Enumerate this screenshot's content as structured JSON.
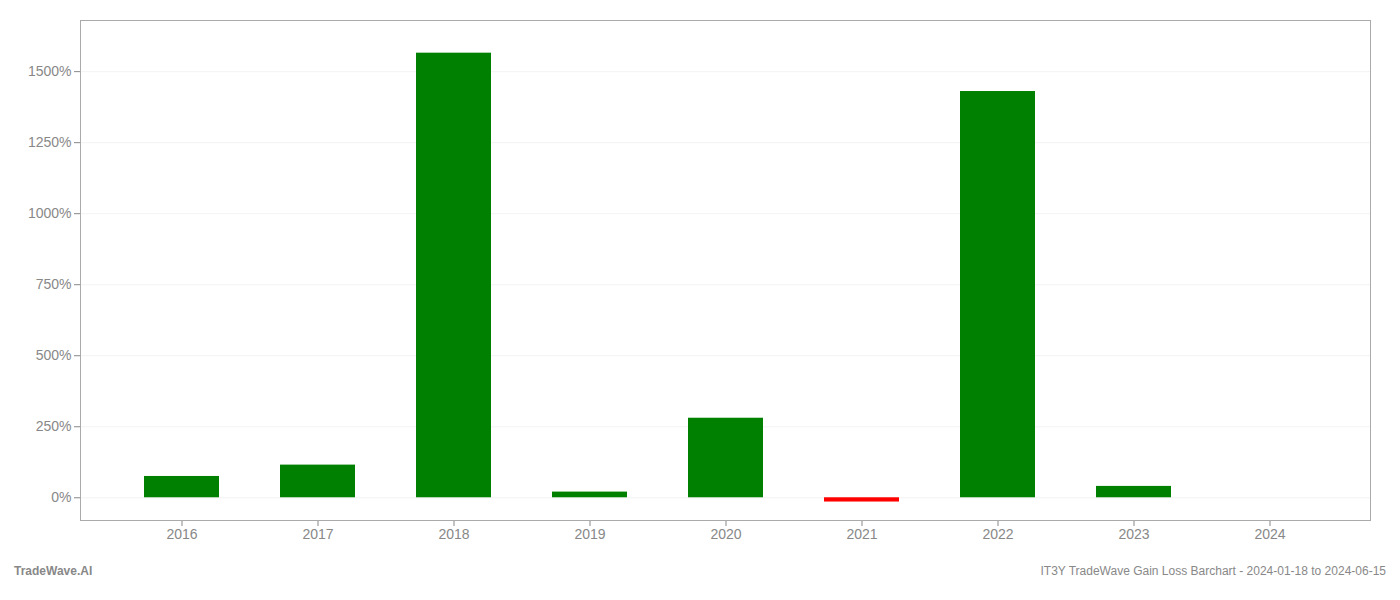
{
  "chart_data": {
    "type": "bar",
    "categories": [
      "2016",
      "2017",
      "2018",
      "2019",
      "2020",
      "2021",
      "2022",
      "2023",
      "2024"
    ],
    "values": [
      75,
      115,
      1565,
      20,
      280,
      -15,
      1430,
      40,
      0
    ],
    "colors": [
      "#008000",
      "#008000",
      "#008000",
      "#008000",
      "#008000",
      "#ff0000",
      "#008000",
      "#008000",
      "#008000"
    ],
    "ylim": [
      -80,
      1680
    ],
    "yticks": [
      {
        "value": 0,
        "label": "0%"
      },
      {
        "value": 250,
        "label": "250%"
      },
      {
        "value": 500,
        "label": "500%"
      },
      {
        "value": 750,
        "label": "750%"
      },
      {
        "value": 1000,
        "label": "1000%"
      },
      {
        "value": 1250,
        "label": "1250%"
      },
      {
        "value": 1500,
        "label": "1500%"
      }
    ],
    "grid": true,
    "annotations": [
      "TradeWave.AI",
      "IT3Y TradeWave Gain Loss Barchart - 2024-01-18 to 2024-06-15"
    ]
  }
}
